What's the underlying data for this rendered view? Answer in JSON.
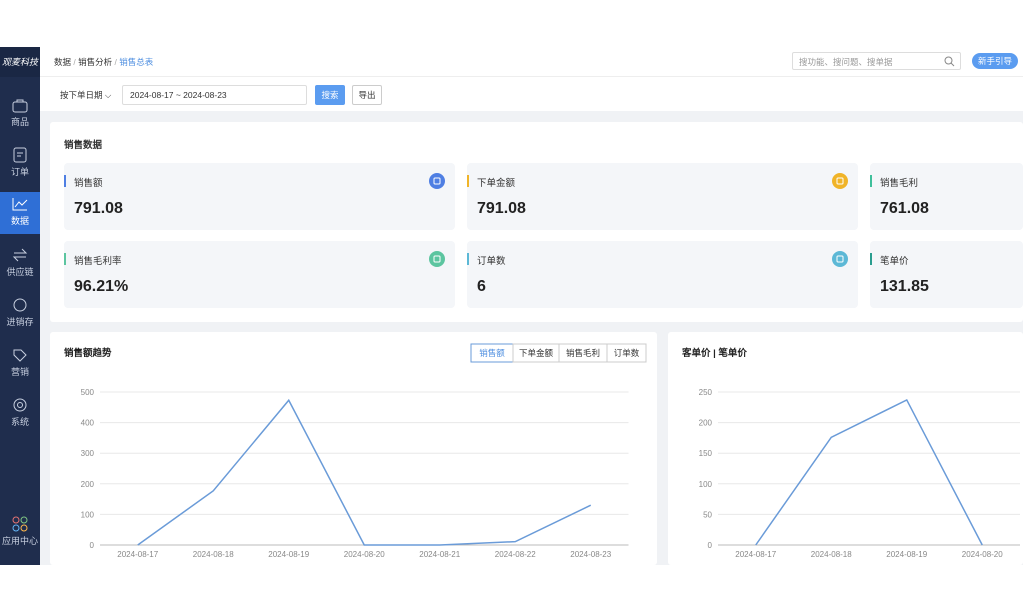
{
  "sidebar": {
    "logo": "观麦科技",
    "menu": [
      "商品",
      "订单",
      "数据",
      "供应链",
      "进销存",
      "营销",
      "系统"
    ],
    "app_center": "应用中心"
  },
  "header": {
    "breadcrumb": [
      "数据",
      "销售分析",
      "销售总表"
    ],
    "search_placeholder": "搜功能、搜问题、搜单据",
    "guide_button": "新手引导"
  },
  "filter": {
    "date_type": "按下单日期",
    "date_range": "2024-08-17 ~ 2024-08-23",
    "search_button": "搜索",
    "export_button": "导出"
  },
  "sales_data": {
    "title": "销售数据",
    "cards": [
      {
        "label": "销售额",
        "value": "791.08",
        "color": "#4f7fe3"
      },
      {
        "label": "下单金额",
        "value": "791.08",
        "color": "#f0b429"
      },
      {
        "label": "销售毛利",
        "value": "761.08",
        "color": "#3fbf9b"
      },
      {
        "label": "销售毛利率",
        "value": "96.21%",
        "color": "#5cc5a0"
      },
      {
        "label": "订单数",
        "value": "6",
        "color": "#5cb8d6"
      },
      {
        "label": "笔单价",
        "value": "131.85",
        "color": "#2a9d8f"
      }
    ]
  },
  "chart_data": [
    {
      "type": "line",
      "title": "销售额趋势",
      "tabs": [
        "销售额",
        "下单金额",
        "销售毛利",
        "订单数"
      ],
      "categories": [
        "2024-08-17",
        "2024-08-18",
        "2024-08-19",
        "2024-08-20",
        "2024-08-21",
        "2024-08-22",
        "2024-08-23"
      ],
      "series": [
        {
          "name": "销售额",
          "color": "#6a9bd8",
          "values": [
            0,
            177,
            473,
            0,
            0,
            11,
            130
          ]
        }
      ],
      "ylim": [
        0,
        500
      ],
      "yticks": [
        0,
        100,
        200,
        300,
        400,
        500
      ],
      "grid": true
    },
    {
      "type": "line",
      "title": "客单价 | 笔单价",
      "categories": [
        "2024-08-17",
        "2024-08-18",
        "2024-08-19",
        "2024-08-20"
      ],
      "series": [
        {
          "name": "客单价",
          "color": "#6a9bd8",
          "values": [
            0,
            176,
            237,
            0
          ]
        }
      ],
      "ylim": [
        0,
        250
      ],
      "yticks": [
        0,
        50,
        100,
        150,
        200,
        250
      ],
      "grid": true
    }
  ]
}
